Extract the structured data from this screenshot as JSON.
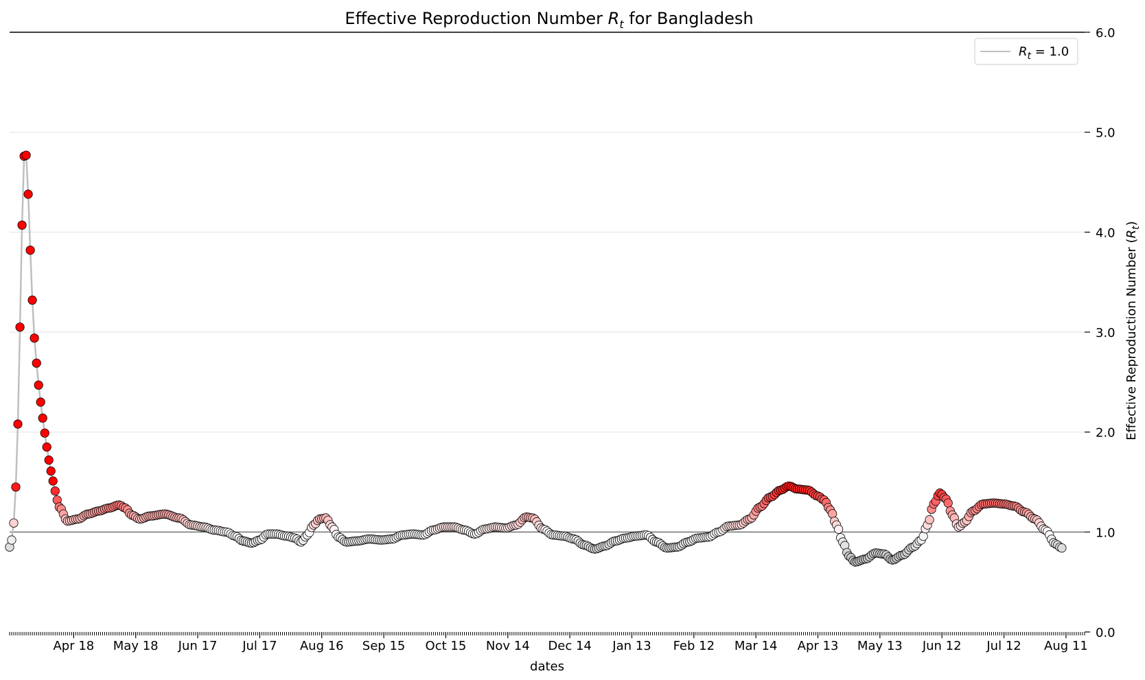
{
  "chart_data": {
    "type": "scatter",
    "title": "Effective Reproduction Number R_t for Bangladesh",
    "title_parts": {
      "prefix": "Effective Reproduction Number ",
      "symbol": "R",
      "subscript": "t",
      "suffix": " for Bangladesh"
    },
    "xlabel": "dates",
    "ylabel": "Effective Reproduction Number (R_t)",
    "ylabel_parts": {
      "prefix": "Effective Reproduction Number (",
      "symbol": "R",
      "subscript": "t",
      "suffix": ")"
    },
    "ylim": [
      0,
      6
    ],
    "y_ticks": [
      "0.0",
      "1.0",
      "2.0",
      "3.0",
      "4.0",
      "5.0",
      "6.0"
    ],
    "y_axis_position": "right",
    "grid": "horizontal",
    "x_start": "2020-03-18",
    "x_end": "2021-08-20",
    "x_ticks": [
      {
        "date": "2020-04-18",
        "label": "Apr 18"
      },
      {
        "date": "2020-05-18",
        "label": "May 18"
      },
      {
        "date": "2020-06-17",
        "label": "Jun 17"
      },
      {
        "date": "2020-07-17",
        "label": "Jul 17"
      },
      {
        "date": "2020-08-16",
        "label": "Aug 16"
      },
      {
        "date": "2020-09-15",
        "label": "Sep 15"
      },
      {
        "date": "2020-10-15",
        "label": "Oct 15"
      },
      {
        "date": "2020-11-14",
        "label": "Nov 14"
      },
      {
        "date": "2020-12-14",
        "label": "Dec 14"
      },
      {
        "date": "2021-01-13",
        "label": "Jan 13"
      },
      {
        "date": "2021-02-12",
        "label": "Feb 12"
      },
      {
        "date": "2021-03-14",
        "label": "Mar 14"
      },
      {
        "date": "2021-04-13",
        "label": "Apr 13"
      },
      {
        "date": "2021-05-13",
        "label": "May 13"
      },
      {
        "date": "2021-06-12",
        "label": "Jun 12"
      },
      {
        "date": "2021-07-12",
        "label": "Jul 12"
      },
      {
        "date": "2021-08-11",
        "label": "Aug 11"
      }
    ],
    "reference_line": {
      "y": 1.0,
      "color": "#4d4d4d"
    },
    "legend": {
      "position": "top-right",
      "symbol": "R",
      "subscript": "t",
      "text": " = 1.0",
      "line_color": "#bfbfbf"
    },
    "colors": {
      "high": "#ff0000",
      "neutral": "#ffffff",
      "low": "#262626",
      "line": "#bfbfbf",
      "marker_edge": "#000000"
    },
    "color_scale": {
      "min": 0.0,
      "center": 1.0,
      "max": 1.5
    },
    "series": [
      {
        "points": [
          [
            "2020-03-18",
            0.85
          ],
          [
            "2020-03-19",
            0.92
          ],
          [
            "2020-03-20",
            1.09
          ],
          [
            "2020-03-21",
            1.45
          ],
          [
            "2020-03-22",
            2.08
          ],
          [
            "2020-03-23",
            3.05
          ],
          [
            "2020-03-24",
            4.07
          ],
          [
            "2020-03-25",
            4.76
          ],
          [
            "2020-03-26",
            4.77
          ],
          [
            "2020-03-27",
            4.38
          ],
          [
            "2020-03-28",
            3.82
          ],
          [
            "2020-03-29",
            3.32
          ],
          [
            "2020-03-30",
            2.94
          ],
          [
            "2020-03-31",
            2.69
          ],
          [
            "2020-04-01",
            2.47
          ],
          [
            "2020-04-02",
            2.3
          ],
          [
            "2020-04-03",
            2.14
          ],
          [
            "2020-04-04",
            1.99
          ],
          [
            "2020-04-05",
            1.85
          ],
          [
            "2020-04-06",
            1.72
          ],
          [
            "2020-04-07",
            1.61
          ],
          [
            "2020-04-08",
            1.51
          ],
          [
            "2020-04-09",
            1.41
          ],
          [
            "2020-04-10",
            1.32
          ],
          [
            "2020-04-11",
            1.25
          ],
          [
            "2020-04-15",
            1.11
          ],
          [
            "2020-04-20",
            1.13
          ],
          [
            "2020-04-25",
            1.18
          ],
          [
            "2020-04-30",
            1.21
          ],
          [
            "2020-05-05",
            1.24
          ],
          [
            "2020-05-10",
            1.27
          ],
          [
            "2020-05-13",
            1.24
          ],
          [
            "2020-05-16",
            1.17
          ],
          [
            "2020-05-20",
            1.13
          ],
          [
            "2020-05-25",
            1.16
          ],
          [
            "2020-06-01",
            1.18
          ],
          [
            "2020-06-08",
            1.14
          ],
          [
            "2020-06-14",
            1.07
          ],
          [
            "2020-06-20",
            1.05
          ],
          [
            "2020-06-25",
            1.02
          ],
          [
            "2020-07-01",
            1.0
          ],
          [
            "2020-07-05",
            0.96
          ],
          [
            "2020-07-09",
            0.91
          ],
          [
            "2020-07-13",
            0.89
          ],
          [
            "2020-07-17",
            0.92
          ],
          [
            "2020-07-21",
            0.98
          ],
          [
            "2020-07-25",
            0.98
          ],
          [
            "2020-07-30",
            0.96
          ],
          [
            "2020-08-03",
            0.94
          ],
          [
            "2020-08-06",
            0.9
          ],
          [
            "2020-08-09",
            0.97
          ],
          [
            "2020-08-12",
            1.07
          ],
          [
            "2020-08-15",
            1.13
          ],
          [
            "2020-08-18",
            1.14
          ],
          [
            "2020-08-21",
            1.05
          ],
          [
            "2020-08-24",
            0.95
          ],
          [
            "2020-08-28",
            0.9
          ],
          [
            "2020-09-02",
            0.91
          ],
          [
            "2020-09-08",
            0.93
          ],
          [
            "2020-09-14",
            0.92
          ],
          [
            "2020-09-19",
            0.93
          ],
          [
            "2020-09-24",
            0.97
          ],
          [
            "2020-09-29",
            0.98
          ],
          [
            "2020-10-04",
            0.97
          ],
          [
            "2020-10-09",
            1.02
          ],
          [
            "2020-10-14",
            1.05
          ],
          [
            "2020-10-19",
            1.05
          ],
          [
            "2020-10-24",
            1.02
          ],
          [
            "2020-10-29",
            0.98
          ],
          [
            "2020-11-03",
            1.03
          ],
          [
            "2020-11-08",
            1.05
          ],
          [
            "2020-11-13",
            1.04
          ],
          [
            "2020-11-18",
            1.07
          ],
          [
            "2020-11-23",
            1.15
          ],
          [
            "2020-11-26",
            1.14
          ],
          [
            "2020-12-01",
            1.03
          ],
          [
            "2020-12-06",
            0.97
          ],
          [
            "2020-12-11",
            0.96
          ],
          [
            "2020-12-16",
            0.93
          ],
          [
            "2020-12-21",
            0.87
          ],
          [
            "2020-12-26",
            0.83
          ],
          [
            "2020-12-31",
            0.86
          ],
          [
            "2021-01-05",
            0.91
          ],
          [
            "2021-01-10",
            0.94
          ],
          [
            "2021-01-15",
            0.96
          ],
          [
            "2021-01-20",
            0.97
          ],
          [
            "2021-01-25",
            0.9
          ],
          [
            "2021-01-30",
            0.84
          ],
          [
            "2021-02-04",
            0.85
          ],
          [
            "2021-02-09",
            0.9
          ],
          [
            "2021-02-14",
            0.94
          ],
          [
            "2021-02-19",
            0.95
          ],
          [
            "2021-02-24",
            1.0
          ],
          [
            "2021-03-01",
            1.06
          ],
          [
            "2021-03-06",
            1.07
          ],
          [
            "2021-03-11",
            1.13
          ],
          [
            "2021-03-16",
            1.25
          ],
          [
            "2021-03-21",
            1.35
          ],
          [
            "2021-03-26",
            1.42
          ],
          [
            "2021-03-30",
            1.46
          ],
          [
            "2021-04-03",
            1.43
          ],
          [
            "2021-04-08",
            1.42
          ],
          [
            "2021-04-13",
            1.36
          ],
          [
            "2021-04-16",
            1.32
          ],
          [
            "2021-04-19",
            1.22
          ],
          [
            "2021-04-22",
            1.07
          ],
          [
            "2021-04-25",
            0.9
          ],
          [
            "2021-04-28",
            0.76
          ],
          [
            "2021-05-01",
            0.7
          ],
          [
            "2021-05-06",
            0.73
          ],
          [
            "2021-05-11",
            0.79
          ],
          [
            "2021-05-15",
            0.78
          ],
          [
            "2021-05-19",
            0.72
          ],
          [
            "2021-05-24",
            0.77
          ],
          [
            "2021-05-29",
            0.85
          ],
          [
            "2021-06-02",
            0.92
          ],
          [
            "2021-06-05",
            1.07
          ],
          [
            "2021-06-08",
            1.28
          ],
          [
            "2021-06-11",
            1.39
          ],
          [
            "2021-06-14",
            1.33
          ],
          [
            "2021-06-17",
            1.17
          ],
          [
            "2021-06-20",
            1.05
          ],
          [
            "2021-06-23",
            1.1
          ],
          [
            "2021-06-27",
            1.21
          ],
          [
            "2021-07-02",
            1.28
          ],
          [
            "2021-07-07",
            1.29
          ],
          [
            "2021-07-12",
            1.28
          ],
          [
            "2021-07-17",
            1.26
          ],
          [
            "2021-07-22",
            1.2
          ],
          [
            "2021-07-27",
            1.13
          ],
          [
            "2021-08-01",
            1.02
          ],
          [
            "2021-08-06",
            0.88
          ],
          [
            "2021-08-09",
            0.84
          ]
        ]
      }
    ]
  }
}
